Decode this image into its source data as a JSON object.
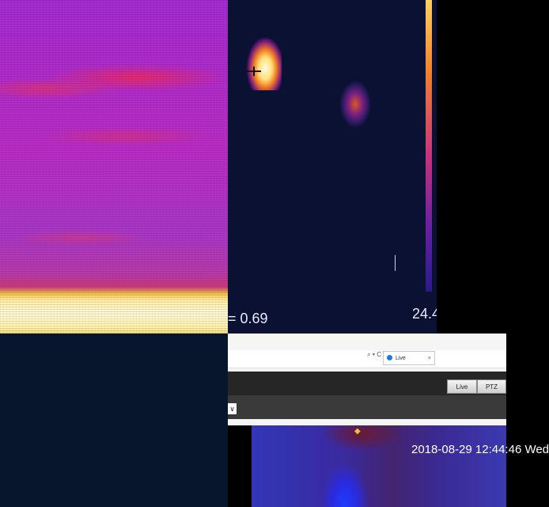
{
  "thermal_left": {
    "icon": "thermal-palette-view"
  },
  "thermal_right": {
    "emissivity_label": "= 0.69",
    "temperature_value": "24.4"
  },
  "browser": {
    "search_hint": "⌕ ▾ C",
    "tab_title": "Live",
    "tab_close": "×",
    "buttons": {
      "live": "Live",
      "ptz": "PTZ"
    },
    "select_value": "∨",
    "osd_timestamp": "2018-08-29 12:44:46 Wed"
  },
  "colors": {
    "thermal_bg": "#0b1132",
    "toolbar_dark": "#262626",
    "ie_blue": "#1e7bd6"
  }
}
